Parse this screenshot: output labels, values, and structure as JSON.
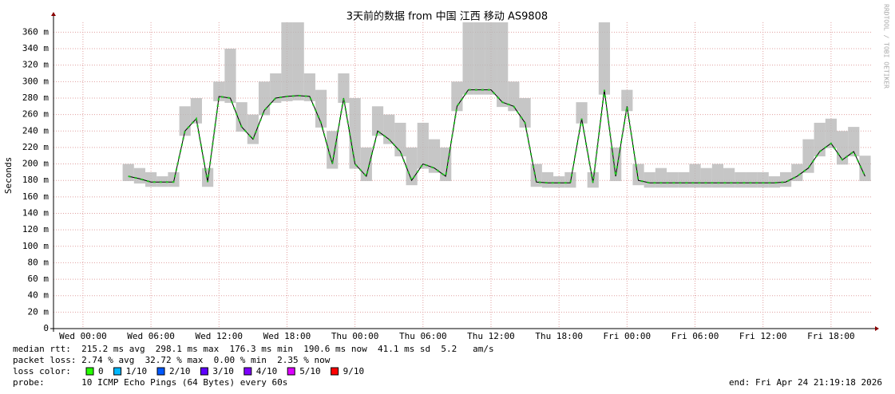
{
  "chart_data": {
    "type": "line",
    "title": "3天前的数据 from 中国 江西 移动 AS9808",
    "y_label": "Seconds",
    "side_label": "RRDTOOL / TOBI OETIKER",
    "x": [
      4,
      5,
      6,
      7,
      8,
      9,
      10,
      11,
      12,
      13,
      14,
      15,
      16,
      17,
      18,
      19,
      20,
      21,
      22,
      23,
      24,
      25,
      26,
      27,
      28,
      29,
      30,
      31,
      32,
      33,
      34,
      35,
      36,
      37,
      38,
      39,
      40,
      41,
      42,
      43,
      44,
      45,
      46,
      47,
      48,
      49,
      50,
      51,
      52,
      53,
      54,
      55,
      56,
      57,
      58,
      59,
      60,
      61,
      62,
      63,
      64,
      65,
      66,
      67,
      68,
      69
    ],
    "series": [
      {
        "name": "median rtt",
        "color": "#20c020",
        "values": [
          0.185,
          0.182,
          0.178,
          0.178,
          0.178,
          0.24,
          0.255,
          0.178,
          0.282,
          0.28,
          0.245,
          0.23,
          0.265,
          0.28,
          0.282,
          0.283,
          0.282,
          0.25,
          0.2,
          0.28,
          0.2,
          0.185,
          0.24,
          0.23,
          0.215,
          0.18,
          0.2,
          0.195,
          0.185,
          0.27,
          0.29,
          0.29,
          0.29,
          0.275,
          0.27,
          0.25,
          0.178,
          0.177,
          0.177,
          0.177,
          0.255,
          0.177,
          0.29,
          0.185,
          0.27,
          0.18,
          0.177,
          0.177,
          0.177,
          0.177,
          0.177,
          0.177,
          0.177,
          0.177,
          0.177,
          0.177,
          0.177,
          0.177,
          0.178,
          0.185,
          0.195,
          0.215,
          0.225,
          0.205,
          0.215,
          0.185
        ]
      },
      {
        "name": "max rtt",
        "color": "#b8b8b8",
        "values": [
          0.2,
          0.195,
          0.19,
          0.185,
          0.19,
          0.27,
          0.28,
          0.195,
          0.3,
          0.34,
          0.275,
          0.26,
          0.3,
          0.31,
          0.372,
          0.372,
          0.31,
          0.29,
          0.24,
          0.31,
          0.28,
          0.22,
          0.27,
          0.26,
          0.25,
          0.22,
          0.25,
          0.23,
          0.22,
          0.3,
          0.372,
          0.372,
          0.372,
          0.372,
          0.3,
          0.28,
          0.2,
          0.19,
          0.185,
          0.19,
          0.275,
          0.19,
          0.372,
          0.22,
          0.29,
          0.2,
          0.19,
          0.195,
          0.19,
          0.19,
          0.2,
          0.195,
          0.2,
          0.195,
          0.19,
          0.19,
          0.19,
          0.185,
          0.19,
          0.2,
          0.23,
          0.25,
          0.255,
          0.24,
          0.245,
          0.21
        ]
      }
    ],
    "xlim": [
      -2.6,
      69.6
    ],
    "xticks": [
      {
        "value": 0,
        "label": "Wed 00:00"
      },
      {
        "value": 6,
        "label": "Wed 06:00"
      },
      {
        "value": 12,
        "label": "Wed 12:00"
      },
      {
        "value": 18,
        "label": "Wed 18:00"
      },
      {
        "value": 24,
        "label": "Thu 00:00"
      },
      {
        "value": 30,
        "label": "Thu 06:00"
      },
      {
        "value": 36,
        "label": "Thu 12:00"
      },
      {
        "value": 42,
        "label": "Thu 18:00"
      },
      {
        "value": 48,
        "label": "Fri 00:00"
      },
      {
        "value": 54,
        "label": "Fri 06:00"
      },
      {
        "value": 60,
        "label": "Fri 12:00"
      },
      {
        "value": 66,
        "label": "Fri 18:00"
      }
    ],
    "ylim": [
      0,
      0.372
    ],
    "yticks": [
      0,
      {
        "value": 0.02,
        "label": "20 m"
      },
      {
        "value": 0.04,
        "label": "40 m"
      },
      {
        "value": 0.06,
        "label": "60 m"
      },
      {
        "value": 0.08,
        "label": "80 m"
      },
      {
        "value": 0.1,
        "label": "100 m"
      },
      {
        "value": 0.12,
        "label": "120 m"
      },
      {
        "value": 0.14,
        "label": "140 m"
      },
      {
        "value": 0.16,
        "label": "160 m"
      },
      {
        "value": 0.18,
        "label": "180 m"
      },
      {
        "value": 0.2,
        "label": "200 m"
      },
      {
        "value": 0.22,
        "label": "220 m"
      },
      {
        "value": 0.24,
        "label": "240 m"
      },
      {
        "value": 0.26,
        "label": "260 m"
      },
      {
        "value": 0.28,
        "label": "280 m"
      },
      {
        "value": 0.3,
        "label": "300 m"
      },
      {
        "value": 0.32,
        "label": "320 m"
      },
      {
        "value": 0.34,
        "label": "340 m"
      },
      {
        "value": 0.36,
        "label": "360 m"
      }
    ],
    "grid": true,
    "stats": {
      "median": "median rtt:  215.2 ms avg  298.1 ms max  176.3 ms min  190.6 ms now  41.1 ms sd  5.2   am/s",
      "loss": "packet loss: 2.74 % avg  32.72 % max  0.00 % min  2.35 % now",
      "loss_color_label": "loss color:",
      "loss_colors": [
        {
          "label": "0",
          "color": "#26ff00"
        },
        {
          "label": "1/10",
          "color": "#00b8ff"
        },
        {
          "label": "2/10",
          "color": "#0059ff"
        },
        {
          "label": "3/10",
          "color": "#5e00ff"
        },
        {
          "label": "4/10",
          "color": "#7e00ff"
        },
        {
          "label": "5/10",
          "color": "#dd00ff"
        },
        {
          "label": "9/10",
          "color": "#ff0000"
        }
      ],
      "probe": "probe:       10 ICMP Echo Pings (64 Bytes) every 60s",
      "end": "end: Fri Apr 24 21:19:18 2026"
    }
  }
}
